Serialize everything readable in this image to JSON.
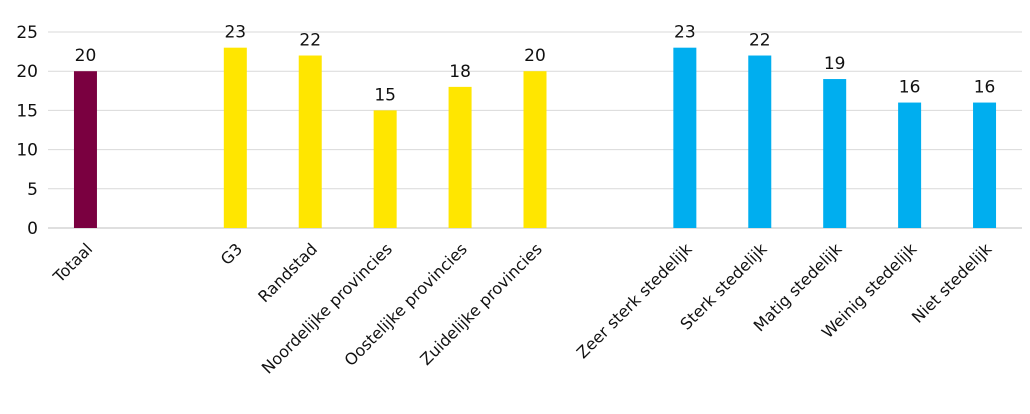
{
  "chart_data": {
    "type": "bar",
    "title": "",
    "xlabel": "",
    "ylabel": "",
    "ylim": [
      0,
      25
    ],
    "yticks": [
      0,
      5,
      10,
      15,
      20,
      25
    ],
    "grid": true,
    "legend": "none",
    "groups": [
      {
        "color": "#7a0040",
        "categories": [
          "Totaal"
        ],
        "values": [
          20
        ]
      },
      {
        "color": "#ffe600",
        "categories": [
          "G3",
          "Randstad",
          "Noordelijke provincies",
          "Oostelijke provincies",
          "Zuidelijke provincies"
        ],
        "values": [
          23,
          22,
          15,
          18,
          20
        ]
      },
      {
        "color": "#00aeef",
        "categories": [
          "Zeer sterk stedelijk",
          "Sterk stedelijk",
          "Matig stedelijk",
          "Weinig stedelijk",
          "Niet stedelijk"
        ],
        "values": [
          23,
          22,
          19,
          16,
          16
        ]
      }
    ]
  }
}
